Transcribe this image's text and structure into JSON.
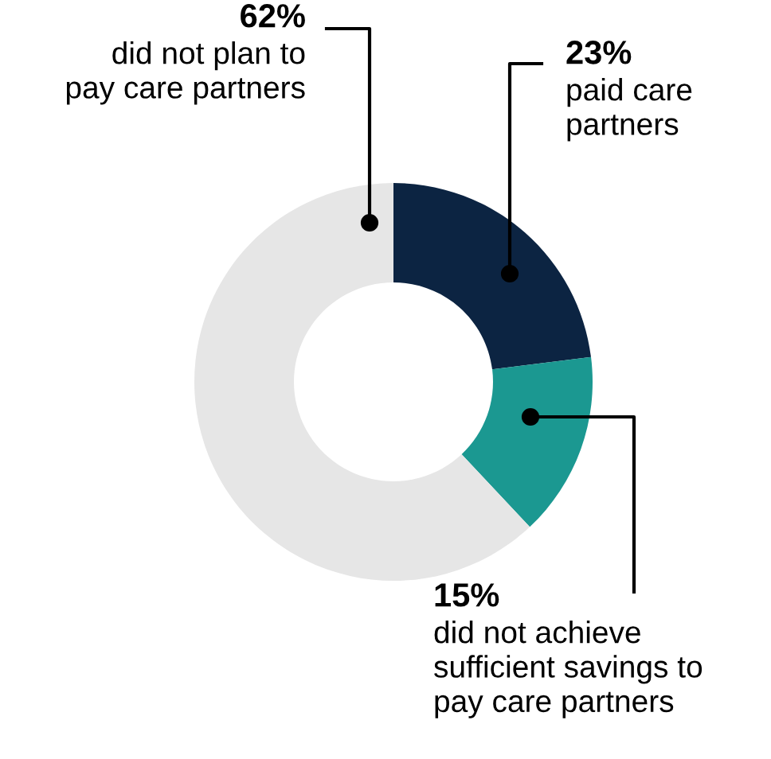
{
  "chart_data": {
    "type": "donut",
    "categories": [
      "paid care\npartners",
      "did not achieve\nsufficient savings to\npay care partners",
      "did not plan to\npay care partners"
    ],
    "values": [
      23,
      15,
      62
    ],
    "colors": [
      "#0c2442",
      "#1b9891",
      "#e6e6e6"
    ],
    "value_labels": [
      "23%",
      "15%",
      "62%"
    ],
    "legend": false
  }
}
